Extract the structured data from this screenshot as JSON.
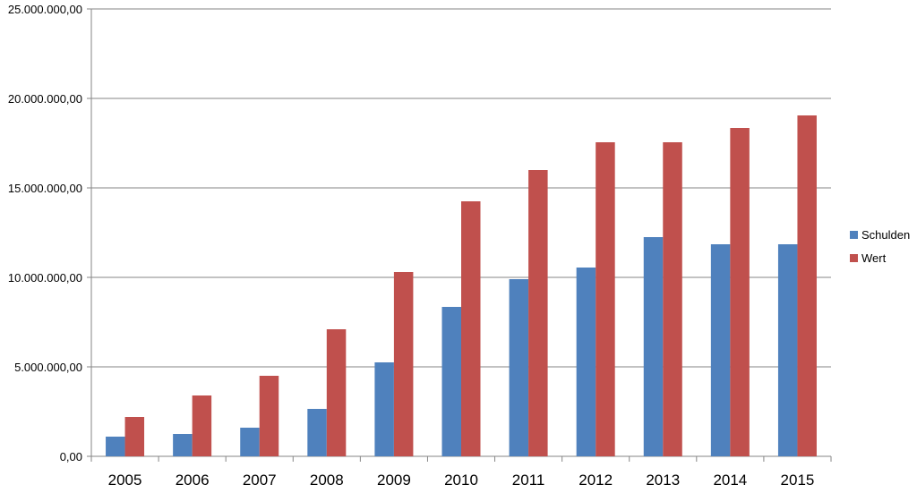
{
  "chart_data": {
    "type": "bar",
    "title": "",
    "xlabel": "",
    "ylabel": "",
    "categories": [
      "2005",
      "2006",
      "2007",
      "2008",
      "2009",
      "2010",
      "2011",
      "2012",
      "2013",
      "2014",
      "2015"
    ],
    "series": [
      {
        "name": "Schulden",
        "color": "#4F81BD",
        "values": [
          1100000,
          1250000,
          1600000,
          2650000,
          5250000,
          8350000,
          9900000,
          10550000,
          12250000,
          11850000,
          11850000
        ]
      },
      {
        "name": "Wert",
        "color": "#C0504D",
        "values": [
          2200000,
          3400000,
          4500000,
          7100000,
          10300000,
          14250000,
          16000000,
          17550000,
          17550000,
          18350000,
          19050000
        ]
      }
    ],
    "ylim": [
      0,
      25000000
    ],
    "yticks": [
      0,
      5000000,
      10000000,
      15000000,
      20000000,
      25000000
    ],
    "ytick_labels": [
      "0,00",
      "5.000.000,00",
      "10.000.000,00",
      "15.000.000,00",
      "20.000.000,00",
      "25.000.000,00"
    ],
    "grid": true,
    "legend_position": "right"
  }
}
